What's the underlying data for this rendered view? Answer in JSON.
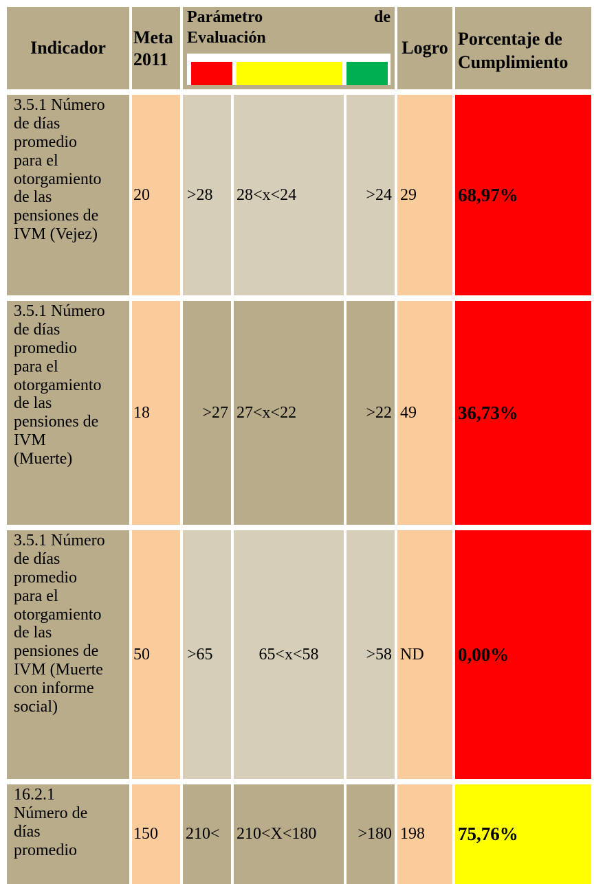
{
  "header": {
    "indicador": "Indicador",
    "meta_line1": "Meta",
    "meta_line2": "2011",
    "parametro_line1_a": "Parámetro",
    "parametro_line1_b": "de",
    "parametro_line2": "Evaluación",
    "logro": "Logro",
    "porcentaje_line1": "Porcentaje de",
    "porcentaje_line2": "Cumplimiento"
  },
  "legend_colors": {
    "red": "#ff0000",
    "yellow": "#ffff00",
    "green": "#00b050"
  },
  "rows": [
    {
      "indicador_lines": [
        "3.5.1 Número",
        "de días",
        "promedio",
        "para el",
        "otorgamiento",
        "de las",
        "pensiones de",
        "IVM (Vejez)"
      ],
      "meta": "20",
      "param_red": ">28",
      "param_yellow": "28<x<24",
      "param_green": ">24",
      "logro": "29",
      "porcentaje": "68,97%",
      "status_color": "#ff0000"
    },
    {
      "indicador_lines": [
        "3.5.1 Número",
        "de días",
        "promedio",
        "para el",
        "otorgamiento",
        "de las",
        "pensiones de",
        "IVM",
        "(Muerte)"
      ],
      "meta": "18",
      "param_red": ">27",
      "param_yellow": "27<x<22",
      "param_green": ">22",
      "logro": "49",
      "porcentaje": "36,73%",
      "status_color": "#ff0000"
    },
    {
      "indicador_lines": [
        "3.5.1 Número",
        "de días",
        "promedio",
        "para el",
        "otorgamiento",
        "de las",
        "pensiones de",
        "IVM (Muerte",
        "con informe",
        "social)"
      ],
      "meta": "50",
      "param_red": ">65",
      "param_yellow": "65<x<58",
      "param_green": ">58",
      "logro": "ND",
      "porcentaje": "0,00%",
      "status_color": "#ff0000"
    },
    {
      "indicador_lines": [
        "16.2.1",
        "Número de",
        "días",
        "promedio"
      ],
      "meta": "150",
      "param_red": "210<",
      "param_yellow": "210<X<180",
      "param_green": ">180",
      "logro": "198",
      "porcentaje": "75,76%",
      "status_color": "#ffff00"
    }
  ]
}
